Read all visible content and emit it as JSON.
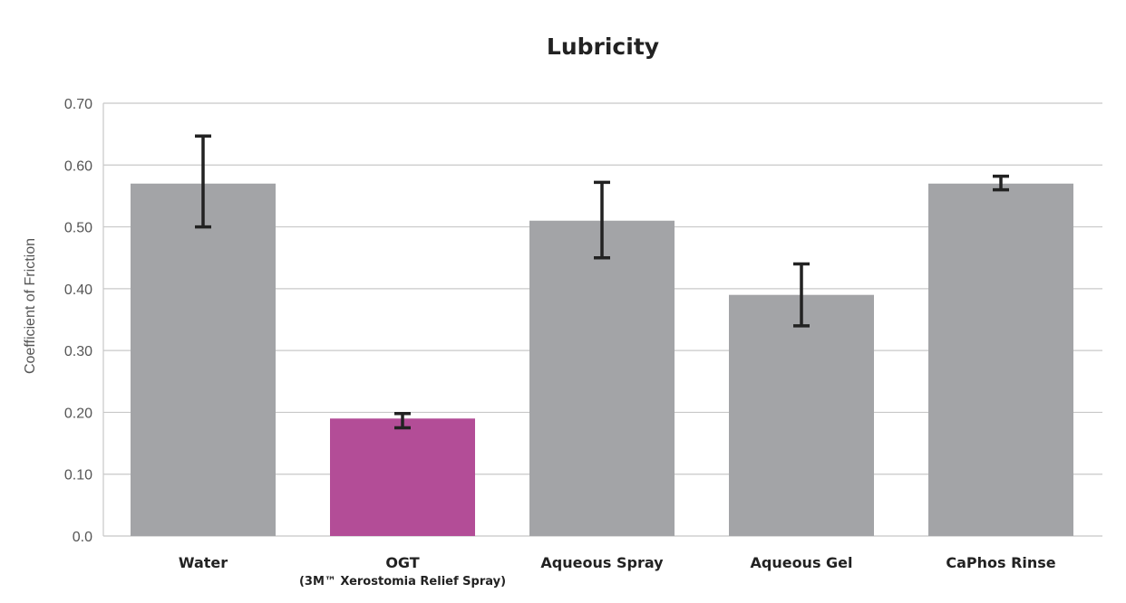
{
  "chart_data": {
    "type": "bar",
    "title": "Lubricity",
    "ylabel": "Coefficient of Friction",
    "xlabel": "",
    "ylim": [
      0,
      0.7
    ],
    "yticks": [
      "0.0",
      "0.10",
      "0.20",
      "0.30",
      "0.40",
      "0.50",
      "0.60",
      "0.70"
    ],
    "grid": true,
    "categories": [
      "Water",
      "OGT",
      "Aqueous Spray",
      "Aqueous Gel",
      "CaPhos Rinse"
    ],
    "category_sublabels": [
      "",
      "(3M™ Xerostomia Relief Spray)",
      "",
      "",
      ""
    ],
    "values": [
      0.57,
      0.19,
      0.51,
      0.39,
      0.57
    ],
    "error_low": [
      0.5,
      0.175,
      0.45,
      0.34,
      0.56
    ],
    "error_high": [
      0.647,
      0.198,
      0.572,
      0.44,
      0.582
    ],
    "colors": [
      "#a3a4a7",
      "#b34d97",
      "#a3a4a7",
      "#a3a4a7",
      "#a3a4a7"
    ],
    "grid_color": "#c8c8c8",
    "error_bar_color": "#222222"
  }
}
